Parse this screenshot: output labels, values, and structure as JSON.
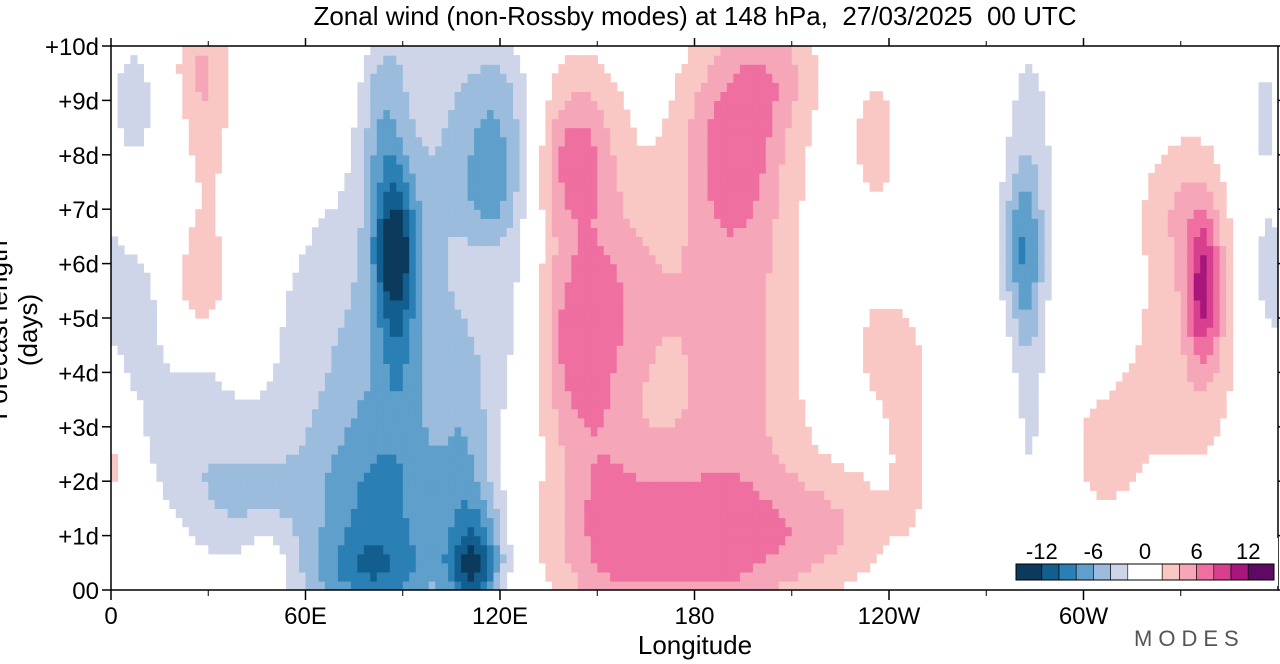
{
  "chart_data": {
    "type": "heatmap",
    "title": "Zonal wind (non-Rossby modes) at 148 hPa,  27/03/2025  00 UTC",
    "xlabel": "Longitude",
    "ylabel": "Forecast length (days)",
    "x_ticks": [
      {
        "lon": 0,
        "label": "0"
      },
      {
        "lon": 60,
        "label": "60E"
      },
      {
        "lon": 120,
        "label": "120E"
      },
      {
        "lon": 180,
        "label": "180"
      },
      {
        "lon": 240,
        "label": "120W"
      },
      {
        "lon": 300,
        "label": "60W"
      }
    ],
    "x_minor_ticks": [
      30,
      90,
      150,
      210,
      270,
      330
    ],
    "xlim": [
      0,
      360
    ],
    "y_ticks": [
      {
        "day": 0,
        "label": "00"
      },
      {
        "day": 1,
        "label": "+1d"
      },
      {
        "day": 2,
        "label": "+2d"
      },
      {
        "day": 3,
        "label": "+3d"
      },
      {
        "day": 4,
        "label": "+4d"
      },
      {
        "day": 5,
        "label": "+5d"
      },
      {
        "day": 6,
        "label": "+6d"
      },
      {
        "day": 7,
        "label": "+7d"
      },
      {
        "day": 8,
        "label": "+8d"
      },
      {
        "day": 9,
        "label": "+9d"
      },
      {
        "day": 10,
        "label": "+10d"
      }
    ],
    "ylim": [
      0,
      10
    ],
    "colorbar": {
      "labels": [
        "-12",
        "-6",
        "0",
        "6",
        "12"
      ],
      "label_values": [
        -12,
        -6,
        0,
        6,
        12
      ],
      "range": [
        -15,
        15
      ],
      "levels": [
        -15,
        -12,
        -10,
        -8,
        -6,
        -4,
        -2,
        2,
        4,
        6,
        8,
        10,
        12,
        15
      ],
      "colors": [
        "#0b3a5c",
        "#125f8f",
        "#2a7fb4",
        "#5f9fcb",
        "#9bbcdc",
        "#cfd5e8",
        "#ffffff",
        "#f9c8c4",
        "#f5a6b8",
        "#ee6fa0",
        "#d83f8e",
        "#a8167d",
        "#5e0a63"
      ]
    },
    "features": [
      {
        "type": "negative",
        "lon": 85,
        "day": 6.5,
        "value": -12
      },
      {
        "type": "negative",
        "lon": 82,
        "day": 1.0,
        "value": -8
      },
      {
        "type": "negative",
        "lon": 112,
        "day": 0.4,
        "value": -12
      },
      {
        "type": "negative",
        "lon": 118,
        "day": 8.6,
        "value": -8
      },
      {
        "type": "negative",
        "lon": 281,
        "day": 6.2,
        "value": -6
      },
      {
        "type": "negative",
        "lon": 38,
        "day": 1.5,
        "value": -4
      },
      {
        "type": "positive",
        "lon": 27,
        "day": 6.0,
        "value": 8
      },
      {
        "type": "positive",
        "lon": 191,
        "day": 8.2,
        "value": 6
      },
      {
        "type": "positive",
        "lon": 143,
        "day": 8.0,
        "value": 6
      },
      {
        "type": "positive",
        "lon": 337,
        "day": 5.5,
        "value": 10
      },
      {
        "type": "positive",
        "lon": 180,
        "day": 0.6,
        "value": 6
      },
      {
        "type": "positive",
        "lon": 237,
        "day": 8.3,
        "value": 6
      }
    ]
  },
  "brand": "MODES"
}
